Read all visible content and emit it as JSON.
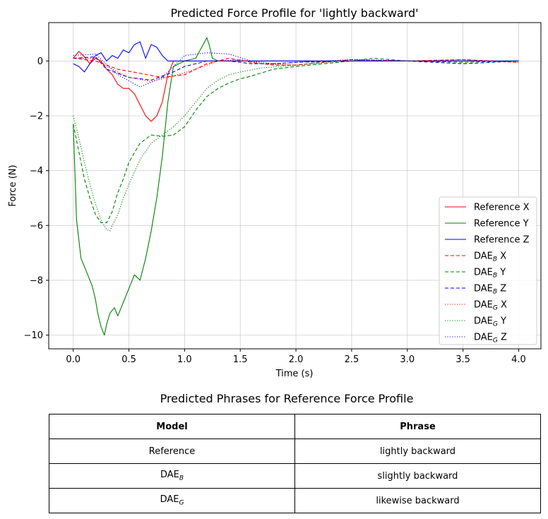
{
  "chart_data": {
    "type": "line",
    "title": "Predicted Force Profile for 'lightly backward'",
    "xlabel": "Time (s)",
    "ylabel": "Force (N)",
    "xlim": [
      -0.22,
      4.2
    ],
    "ylim": [
      -10.5,
      1.4
    ],
    "xticks": [
      0.0,
      0.5,
      1.0,
      1.5,
      2.0,
      2.5,
      3.0,
      3.5,
      4.0
    ],
    "xtick_labels": [
      "0.0",
      "0.5",
      "1.0",
      "1.5",
      "2.0",
      "2.5",
      "3.0",
      "3.5",
      "4.0"
    ],
    "yticks": [
      0,
      -2,
      -4,
      -6,
      -8,
      -10
    ],
    "ytick_labels": [
      "0",
      "−2",
      "−4",
      "−6",
      "−8",
      "−10"
    ],
    "grid": true,
    "legend_position": "lower-right",
    "series": [
      {
        "name": "Reference X",
        "name_base": "Reference",
        "name_sub": "",
        "name_axis": "X",
        "color": "#ff0000",
        "style": "solid",
        "x": [
          0,
          0.05,
          0.1,
          0.15,
          0.2,
          0.25,
          0.3,
          0.35,
          0.4,
          0.45,
          0.5,
          0.55,
          0.6,
          0.65,
          0.7,
          0.75,
          0.8,
          0.85,
          0.9,
          1.0,
          1.2,
          4.0
        ],
        "y": [
          0.1,
          0.35,
          0.15,
          -0.1,
          0.1,
          0.0,
          -0.3,
          -0.5,
          -0.85,
          -1.0,
          -1.0,
          -1.2,
          -1.6,
          -2.0,
          -2.2,
          -2.0,
          -1.5,
          -0.5,
          0.0,
          0.0,
          0.0,
          0.0
        ]
      },
      {
        "name": "Reference Y",
        "name_base": "Reference",
        "name_sub": "",
        "name_axis": "Y",
        "color": "#008000",
        "style": "solid",
        "x": [
          0,
          0.03,
          0.07,
          0.1,
          0.13,
          0.17,
          0.2,
          0.22,
          0.25,
          0.28,
          0.3,
          0.33,
          0.37,
          0.4,
          0.45,
          0.5,
          0.55,
          0.6,
          0.65,
          0.7,
          0.75,
          0.8,
          0.85,
          0.9,
          1.0,
          1.1,
          1.2,
          1.22,
          1.25,
          1.3,
          1.5,
          4.0
        ],
        "y": [
          -2.3,
          -5.8,
          -7.2,
          -7.5,
          -7.8,
          -8.2,
          -8.7,
          -9.2,
          -9.7,
          -10.0,
          -9.6,
          -9.2,
          -9.0,
          -9.3,
          -8.8,
          -8.3,
          -7.8,
          -8.0,
          -7.2,
          -6.2,
          -5.0,
          -3.5,
          -1.5,
          -0.2,
          0.0,
          0.1,
          0.85,
          0.6,
          0.1,
          0.0,
          0.0,
          0.0
        ]
      },
      {
        "name": "Reference Z",
        "name_base": "Reference",
        "name_sub": "",
        "name_axis": "Z",
        "color": "#0000ff",
        "style": "solid",
        "x": [
          0,
          0.05,
          0.1,
          0.15,
          0.2,
          0.25,
          0.3,
          0.35,
          0.4,
          0.45,
          0.5,
          0.55,
          0.6,
          0.65,
          0.7,
          0.75,
          0.8,
          0.85,
          0.9,
          1.0,
          1.2,
          4.0
        ],
        "y": [
          -0.1,
          -0.2,
          -0.4,
          -0.1,
          0.2,
          0.3,
          0.0,
          0.2,
          0.1,
          0.4,
          0.3,
          0.6,
          0.7,
          0.1,
          0.6,
          0.5,
          0.2,
          0.0,
          0.0,
          0.0,
          0.0,
          0.0
        ]
      },
      {
        "name": "DAE_B X",
        "name_base": "DAE",
        "name_sub": "B",
        "name_axis": "X",
        "color": "#ff0000",
        "style": "dashed",
        "x": [
          0,
          0.2,
          0.4,
          0.6,
          0.8,
          1.0,
          1.2,
          1.4,
          1.6,
          1.8,
          2.0,
          2.5,
          3.0,
          3.5,
          4.0
        ],
        "y": [
          0.1,
          0.0,
          -0.3,
          -0.45,
          -0.6,
          -0.5,
          -0.1,
          0.1,
          -0.05,
          -0.15,
          -0.15,
          0.05,
          0.0,
          0.05,
          -0.05
        ]
      },
      {
        "name": "DAE_B Y",
        "name_base": "DAE",
        "name_sub": "B",
        "name_axis": "Y",
        "color": "#008000",
        "style": "dashed",
        "x": [
          0,
          0.05,
          0.1,
          0.15,
          0.2,
          0.25,
          0.3,
          0.35,
          0.4,
          0.45,
          0.5,
          0.6,
          0.7,
          0.8,
          0.9,
          1.0,
          1.1,
          1.2,
          1.3,
          1.4,
          1.5,
          1.6,
          1.8,
          2.0,
          2.5,
          2.7,
          3.0,
          3.5,
          4.0
        ],
        "y": [
          -2.3,
          -3.3,
          -4.3,
          -5.0,
          -5.6,
          -5.9,
          -5.9,
          -5.5,
          -4.8,
          -4.3,
          -3.7,
          -3.0,
          -2.7,
          -2.75,
          -2.7,
          -2.4,
          -1.8,
          -1.3,
          -1.0,
          -0.8,
          -0.65,
          -0.55,
          -0.3,
          -0.2,
          0.0,
          0.1,
          0.0,
          -0.05,
          0.0
        ]
      },
      {
        "name": "DAE_B Z",
        "name_base": "DAE",
        "name_sub": "B",
        "name_axis": "Z",
        "color": "#0000ff",
        "style": "dashed",
        "x": [
          0,
          0.2,
          0.3,
          0.5,
          0.7,
          0.9,
          1.0,
          1.2,
          1.4,
          1.6,
          1.8,
          2.0,
          2.5,
          3.0,
          3.5,
          4.0
        ],
        "y": [
          0.1,
          0.15,
          -0.3,
          -0.6,
          -0.7,
          -0.4,
          -0.2,
          0.0,
          0.0,
          -0.1,
          -0.1,
          -0.05,
          0.0,
          0.0,
          -0.1,
          0.0
        ]
      },
      {
        "name": "DAE_G X",
        "name_base": "DAE",
        "name_sub": "G",
        "name_axis": "X",
        "color": "#ff0000",
        "style": "dotted",
        "x": [
          0,
          0.2,
          0.3,
          0.5,
          0.7,
          0.9,
          1.1,
          1.3,
          1.5,
          1.7,
          2.0,
          2.5,
          3.0,
          3.5,
          4.0
        ],
        "y": [
          0.1,
          0.1,
          -0.2,
          -0.6,
          -0.75,
          -0.55,
          -0.3,
          0.0,
          0.05,
          -0.1,
          -0.15,
          0.05,
          0.0,
          0.05,
          -0.05
        ]
      },
      {
        "name": "DAE_G Y",
        "name_base": "DAE",
        "name_sub": "G",
        "name_axis": "Y",
        "color": "#008000",
        "style": "dotted",
        "x": [
          0,
          0.05,
          0.1,
          0.15,
          0.2,
          0.25,
          0.3,
          0.33,
          0.35,
          0.4,
          0.45,
          0.5,
          0.6,
          0.7,
          0.8,
          0.9,
          1.0,
          1.1,
          1.2,
          1.3,
          1.4,
          1.5,
          1.7,
          2.0,
          2.5,
          3.0,
          4.0
        ],
        "y": [
          -2.0,
          -2.8,
          -3.7,
          -4.5,
          -5.2,
          -5.8,
          -6.15,
          -6.2,
          -6.0,
          -5.6,
          -5.0,
          -4.5,
          -3.6,
          -3.0,
          -2.7,
          -2.4,
          -2.0,
          -1.5,
          -1.0,
          -0.7,
          -0.5,
          -0.4,
          -0.25,
          -0.15,
          0.05,
          0.0,
          0.0
        ]
      },
      {
        "name": "DAE_G Z",
        "name_base": "DAE",
        "name_sub": "G",
        "name_axis": "Z",
        "color": "#0000ff",
        "style": "dotted",
        "x": [
          0,
          0.2,
          0.4,
          0.6,
          0.8,
          1.0,
          1.2,
          1.4,
          1.6,
          1.8,
          2.0,
          2.5,
          3.0,
          3.5,
          4.0
        ],
        "y": [
          0.2,
          0.25,
          -0.5,
          -0.95,
          -0.6,
          0.2,
          0.3,
          0.25,
          0.0,
          -0.1,
          -0.05,
          0.05,
          0.0,
          0.0,
          0.0
        ]
      }
    ]
  },
  "table": {
    "title": "Predicted Phrases for Reference Force Profile",
    "headers": {
      "model": "Model",
      "phrase": "Phrase"
    },
    "rows": [
      {
        "model_base": "Reference",
        "model_sub": "",
        "phrase": "lightly backward"
      },
      {
        "model_base": "DAE",
        "model_sub": "B",
        "phrase": "slightly backward"
      },
      {
        "model_base": "DAE",
        "model_sub": "G",
        "phrase": "likewise  backward"
      }
    ]
  }
}
